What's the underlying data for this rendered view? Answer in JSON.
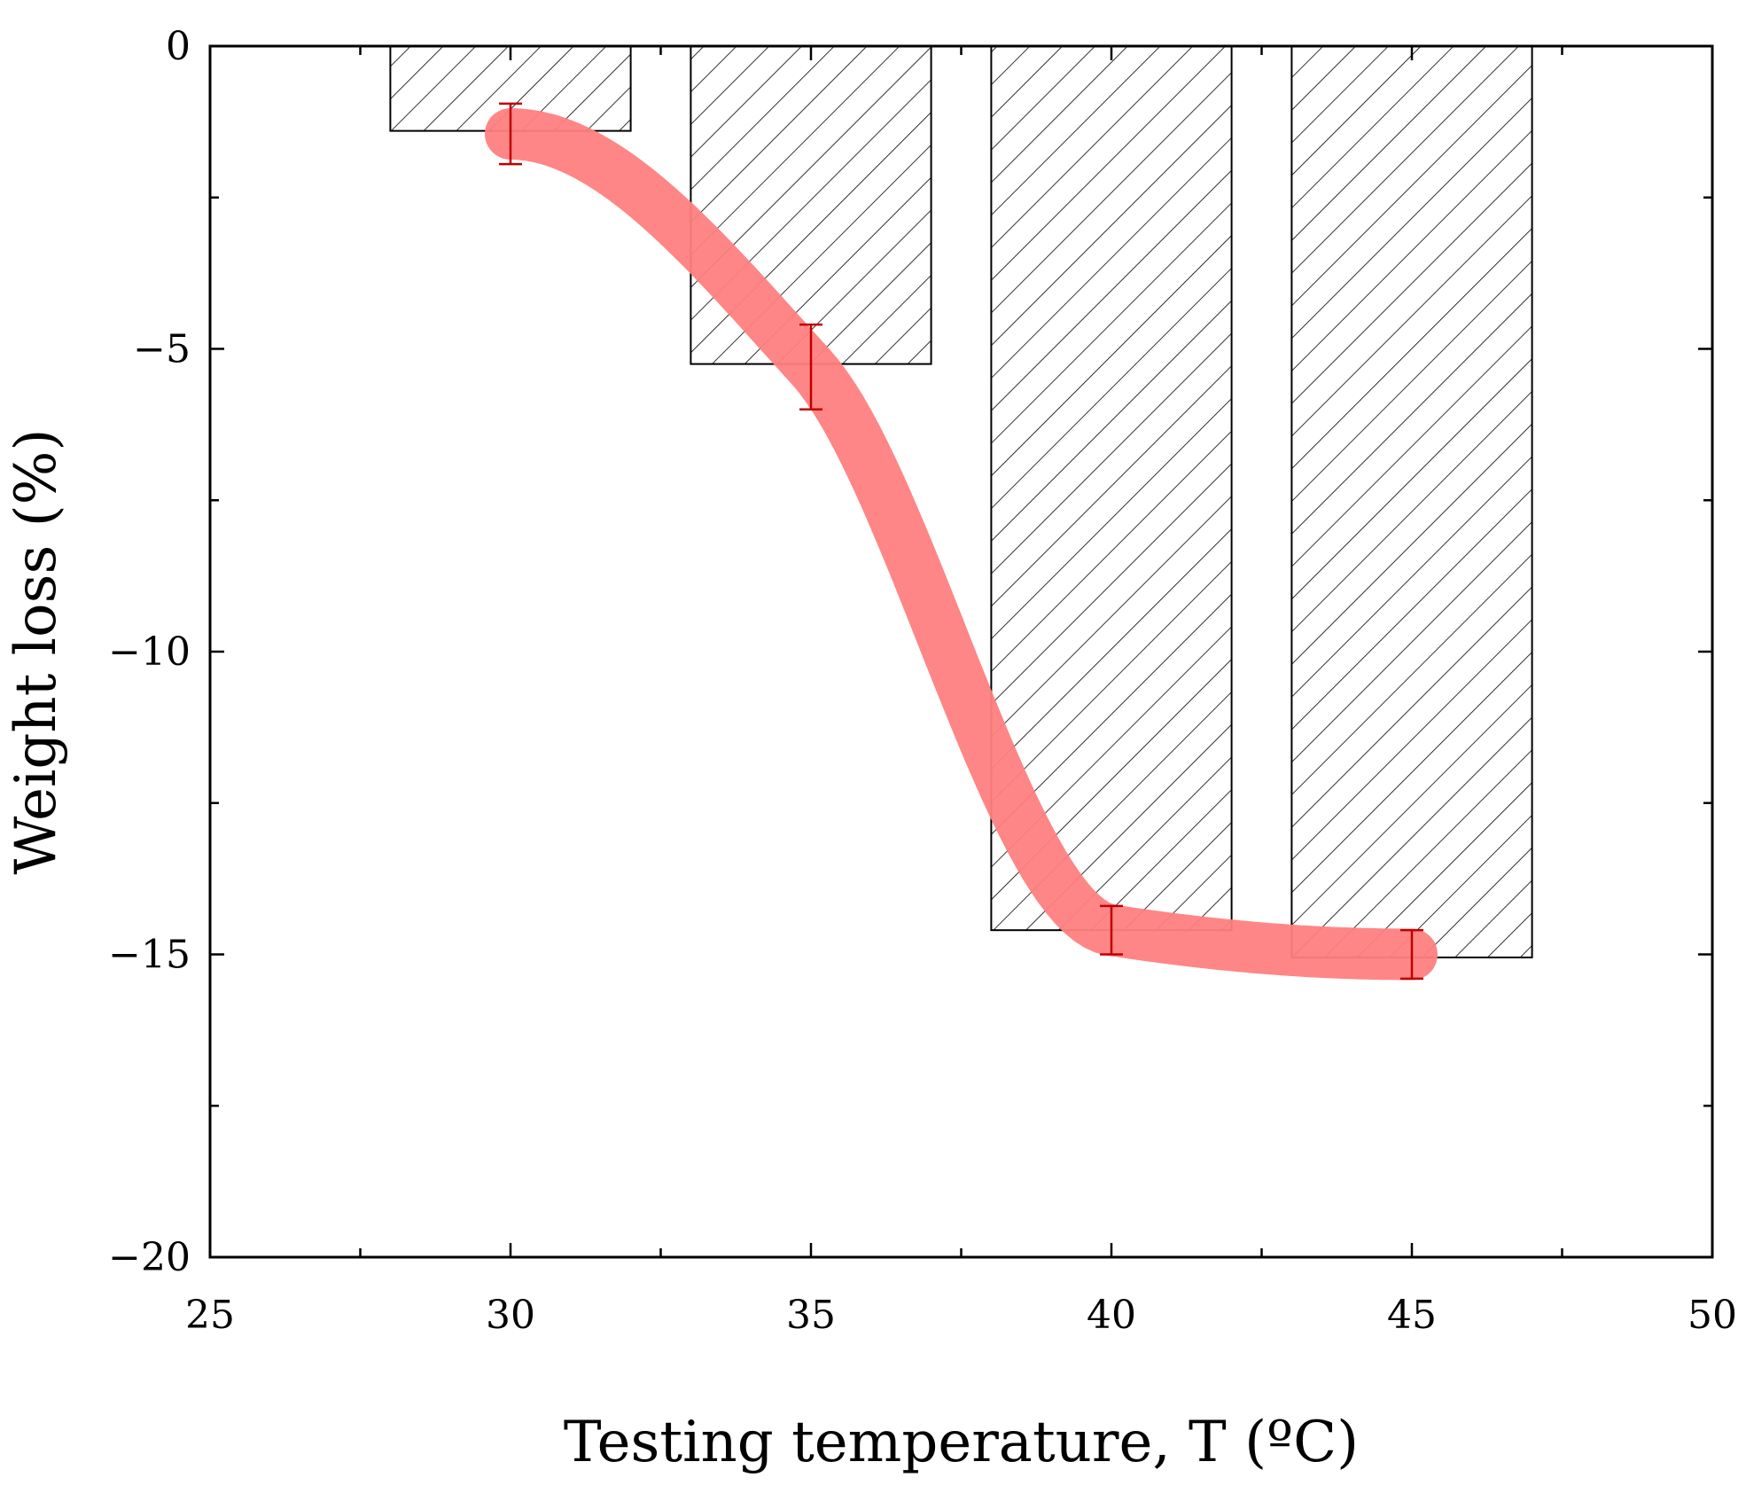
{
  "chart_data": {
    "type": "bar",
    "xlabel": "Testing temperature, T (ºC)",
    "ylabel": "Weight loss (%)",
    "xlim": [
      25,
      50
    ],
    "ylim": [
      -20,
      0
    ],
    "x_ticks": [
      "25",
      "30",
      "35",
      "40",
      "45",
      "50"
    ],
    "y_ticks": [
      "0",
      "−5",
      "−10",
      "−15",
      "−20"
    ],
    "bar_width": 4,
    "grid": false,
    "legend": "none",
    "series": [
      {
        "kind": "bar",
        "pattern": "diagonal-hatch",
        "color": "#000000",
        "x": [
          30,
          35,
          40,
          45
        ],
        "values": [
          -1.4,
          -5.25,
          -14.6,
          -15.05
        ]
      },
      {
        "kind": "trend-line",
        "color": "#ff7f7f",
        "x": [
          30,
          35,
          40,
          45
        ],
        "values": [
          -1.45,
          -5.3,
          -14.6,
          -15.0
        ],
        "error": [
          0.5,
          0.7,
          0.4,
          0.4
        ],
        "error_color": "#c00000"
      }
    ]
  }
}
